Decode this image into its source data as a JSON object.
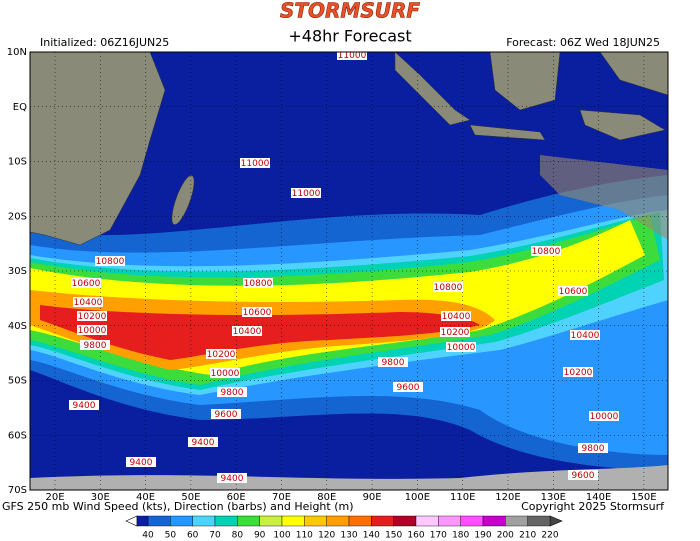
{
  "header": {
    "logo": "STORMSURF",
    "initialized": "Initialized: 06Z16JUN25",
    "title": "+48hr Forecast",
    "forecast": "Forecast: 06Z Wed 18JUN25"
  },
  "map": {
    "lat_labels": [
      "10N",
      "EQ",
      "10S",
      "20S",
      "30S",
      "40S",
      "50S",
      "60S",
      "70S"
    ],
    "lon_labels": [
      "20E",
      "30E",
      "40E",
      "50E",
      "60E",
      "70E",
      "80E",
      "90E",
      "100E",
      "110E",
      "120E",
      "130E",
      "140E",
      "150E"
    ],
    "contour_labels": [
      "11000",
      "11000",
      "11000",
      "10800",
      "10600",
      "10400",
      "10200",
      "10000",
      "9800",
      "10800",
      "10600",
      "10400",
      "10200",
      "10000",
      "9800",
      "9600",
      "9400",
      "9400",
      "9400",
      "9400",
      "10800",
      "10400",
      "10200",
      "10000",
      "9800",
      "9600",
      "10800",
      "10600",
      "10400",
      "10200",
      "10000",
      "9800",
      "9600"
    ]
  },
  "footer": {
    "description": "GFS 250 mb Wind Speed (kts), Direction (barbs) and Height (m)",
    "copyright": "Copyright 2025 Stormsurf"
  },
  "colorbar": {
    "labels": [
      40,
      50,
      60,
      70,
      80,
      90,
      100,
      110,
      120,
      130,
      140,
      150,
      160,
      170,
      180,
      190,
      200,
      210,
      220
    ],
    "colors": [
      "#1464d2",
      "#2896ff",
      "#50d2ff",
      "#00d2b4",
      "#3cdc3c",
      "#c8f03c",
      "#ffff00",
      "#ffc800",
      "#ffa000",
      "#ff6e00",
      "#e61e1e",
      "#b40028",
      "#ffc8ff",
      "#ff96ff",
      "#ff50ff",
      "#c800c8",
      "#a0a0a0",
      "#646464"
    ]
  }
}
